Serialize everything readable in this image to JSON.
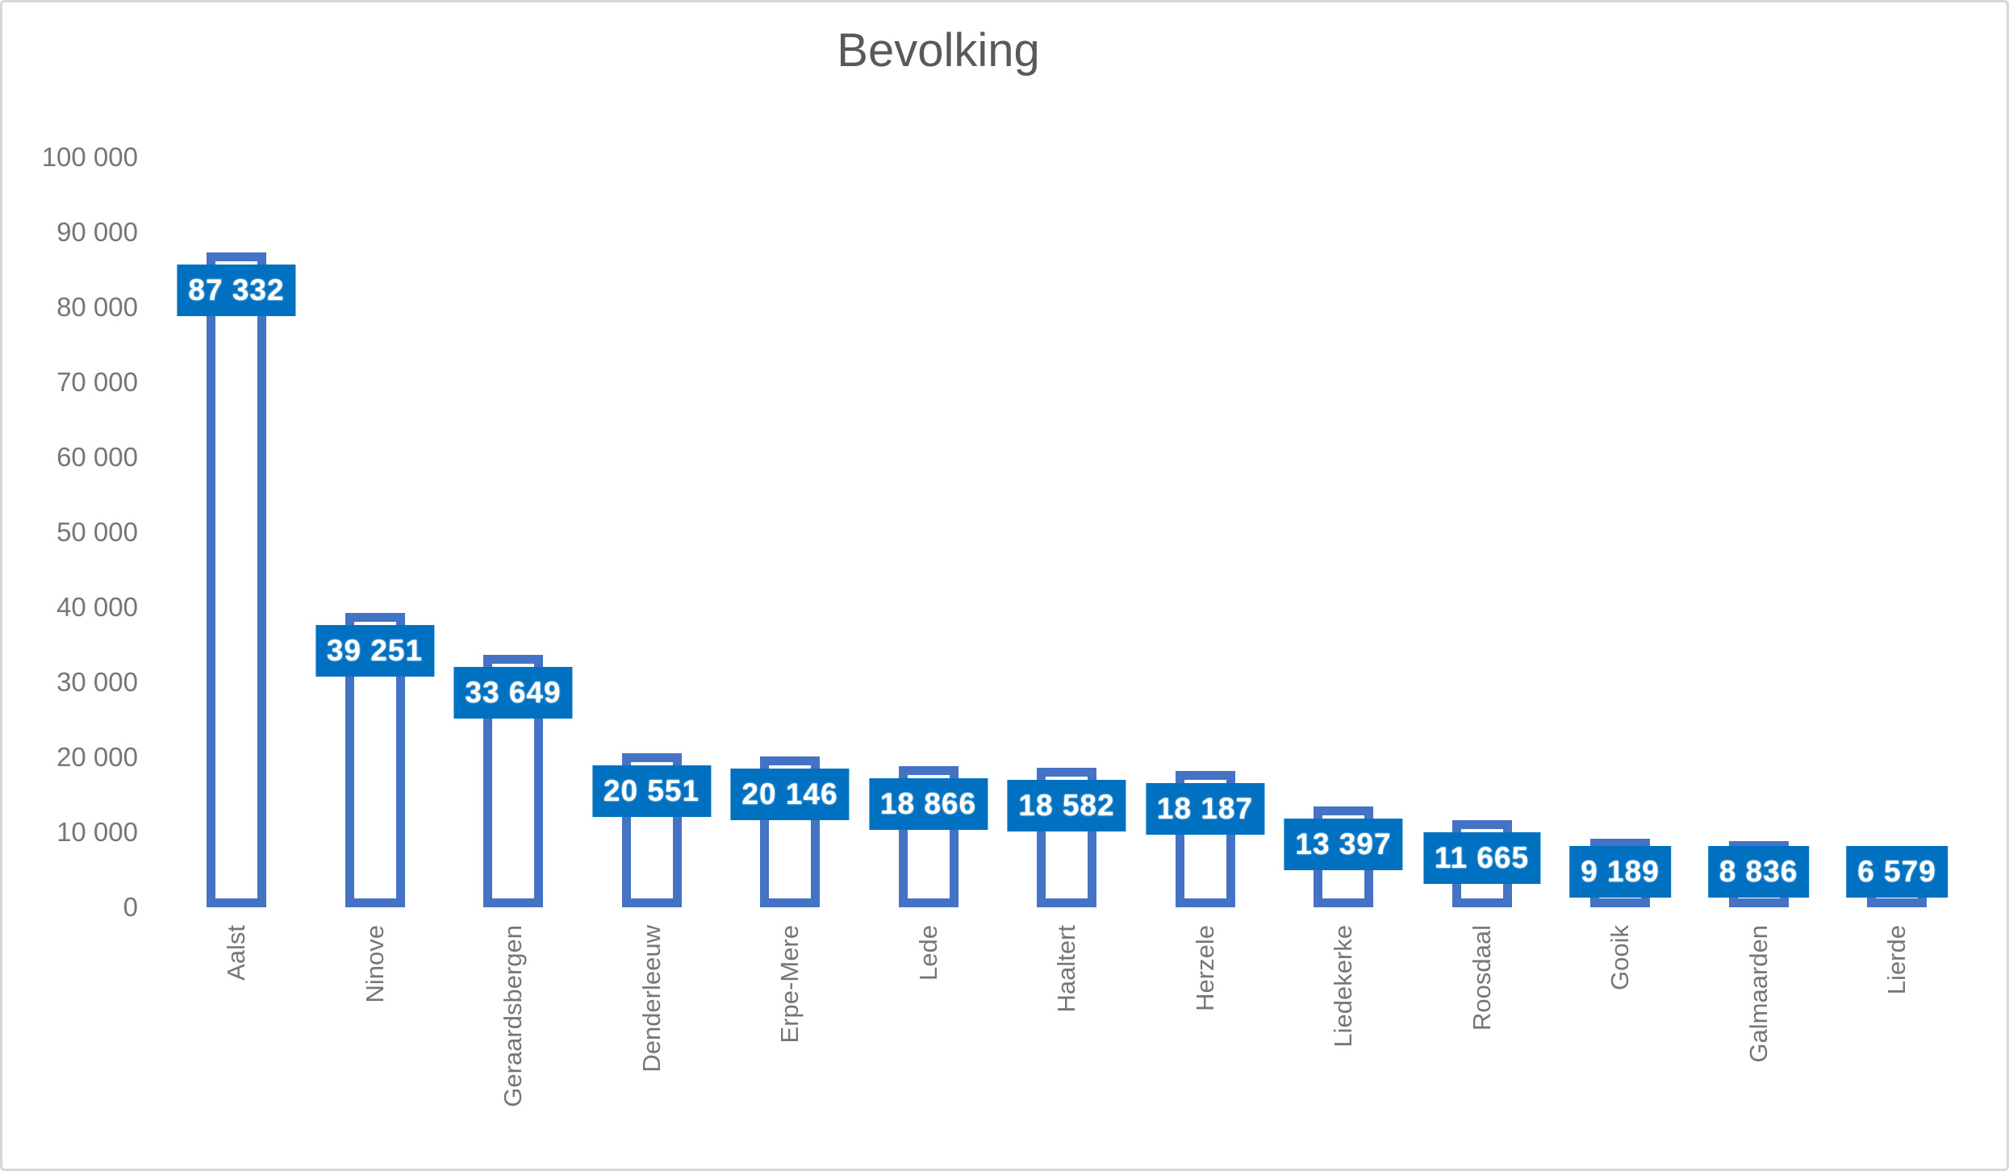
{
  "chart_data": {
    "type": "bar",
    "title": "Bevolking",
    "categories": [
      "Aalst",
      "Ninove",
      "Geraardsbergen",
      "Denderleeuw",
      "Erpe-Mere",
      "Lede",
      "Haaltert",
      "Herzele",
      "Liedekerke",
      "Roosdaal",
      "Gooik",
      "Galmaarden",
      "Lierde"
    ],
    "values": [
      87332,
      39251,
      33649,
      20551,
      20146,
      18866,
      18582,
      18187,
      13397,
      11665,
      9189,
      8836,
      6579
    ],
    "data_labels": [
      "87 332",
      "39 251",
      "33 649",
      "20 551",
      "20 146",
      "18 866",
      "18 582",
      "18 187",
      "13 397",
      "11 665",
      "9 189",
      "8 836",
      "6 579"
    ],
    "xlabel": "",
    "ylabel": "",
    "ylim": [
      0,
      100000
    ],
    "ytick_step": 10000,
    "ytick_labels": [
      "0",
      "10 000",
      "20 000",
      "30 000",
      "40 000",
      "50 000",
      "60 000",
      "70 000",
      "80 000",
      "90 000",
      "100 000"
    ],
    "grid": false,
    "legend": "none",
    "bar_style": "hollow-outline",
    "label_style": "filled-box-inside-end",
    "colors": {
      "bar_outline": "#4472C4",
      "bar_fill": "#FFFFFF",
      "label_fill": "#0070C0",
      "label_text": "#FFFFFF",
      "title_text": "#595959",
      "axis_text": "#767676",
      "frame_border": "#D7D7D7"
    }
  }
}
